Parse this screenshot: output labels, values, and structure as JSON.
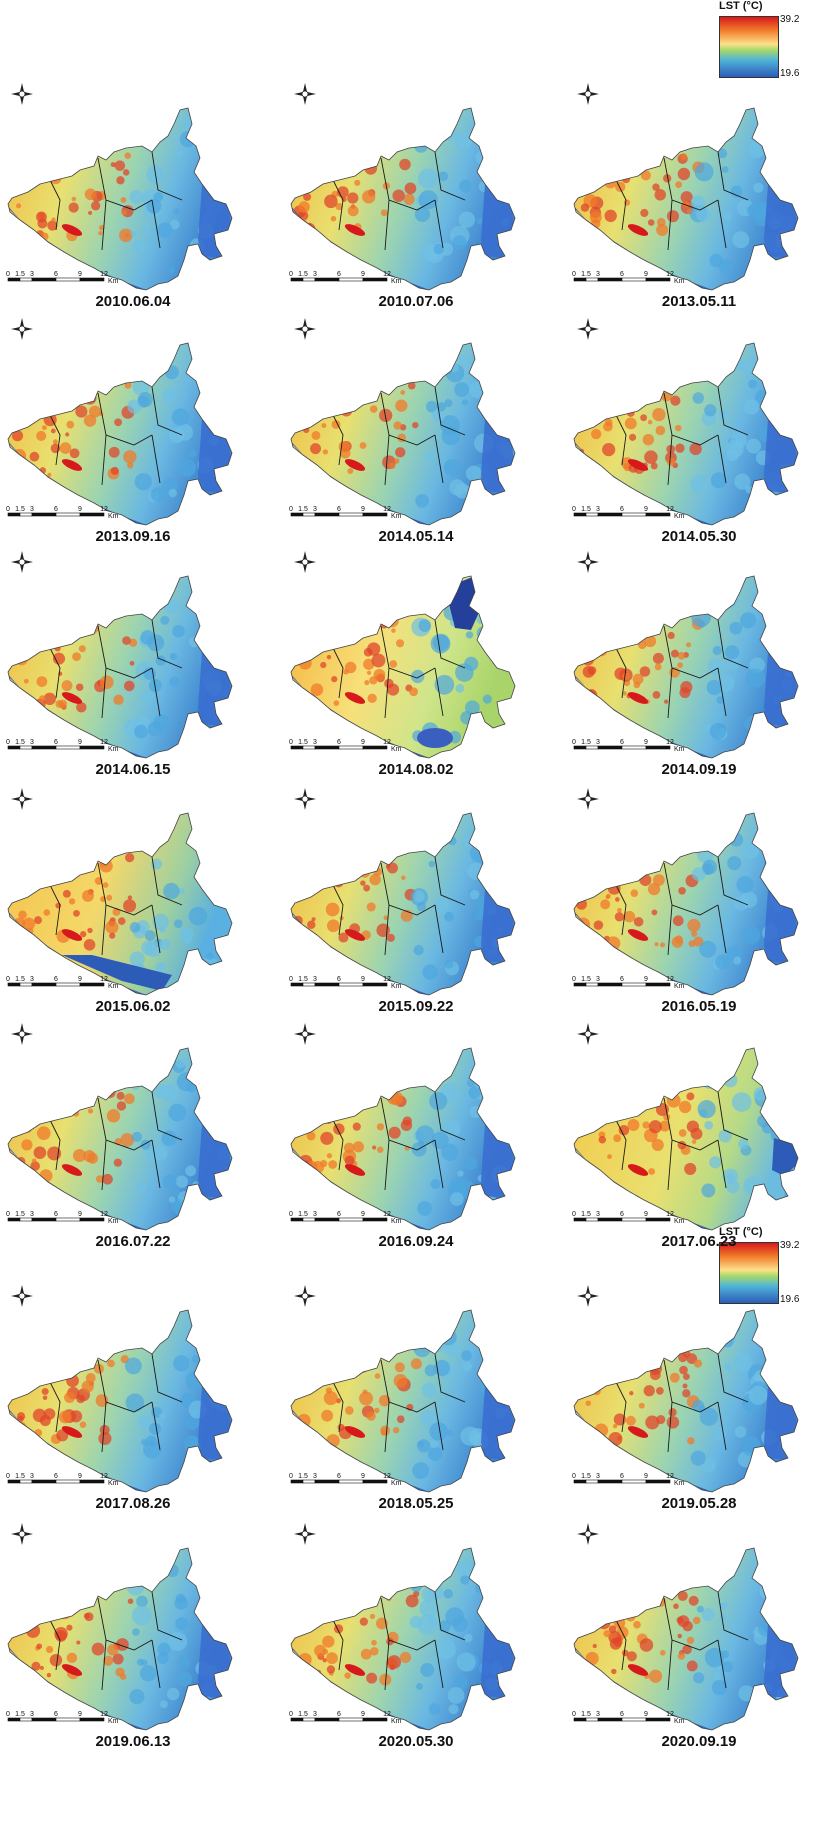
{
  "legend": {
    "title": "LST (°C)",
    "max": "39.2",
    "min": "19.6",
    "colors": [
      "#d7191c",
      "#f07a2a",
      "#fee08b",
      "#a6d96a",
      "#4fb3d9",
      "#2c5cb8"
    ]
  },
  "scale": {
    "ticks": [
      "0",
      "1.5",
      "3",
      "6",
      "9",
      "12"
    ],
    "unit": "Km"
  },
  "panels": [
    {
      "date": "2010.06.04",
      "variant": "normal"
    },
    {
      "date": "2010.07.06",
      "variant": "normal"
    },
    {
      "date": "2013.05.11",
      "variant": "normal"
    },
    {
      "date": "2013.09.16",
      "variant": "normal"
    },
    {
      "date": "2014.05.14",
      "variant": "normal"
    },
    {
      "date": "2014.05.30",
      "variant": "normal"
    },
    {
      "date": "2014.06.15",
      "variant": "normal"
    },
    {
      "date": "2014.08.02",
      "variant": "warm-east-cold"
    },
    {
      "date": "2014.09.19",
      "variant": "normal"
    },
    {
      "date": "2015.06.02",
      "variant": "warm-coast-cold"
    },
    {
      "date": "2015.09.22",
      "variant": "normal"
    },
    {
      "date": "2016.05.19",
      "variant": "normal"
    },
    {
      "date": "2016.07.22",
      "variant": "normal"
    },
    {
      "date": "2016.09.24",
      "variant": "normal"
    },
    {
      "date": "2017.06.23",
      "variant": "warm"
    },
    {
      "date": "2017.08.26",
      "variant": "normal"
    },
    {
      "date": "2018.05.25",
      "variant": "normal"
    },
    {
      "date": "2019.05.28",
      "variant": "normal"
    },
    {
      "date": "2019.06.13",
      "variant": "normal"
    },
    {
      "date": "2020.05.30",
      "variant": "normal"
    },
    {
      "date": "2020.09.19",
      "variant": "normal"
    }
  ]
}
